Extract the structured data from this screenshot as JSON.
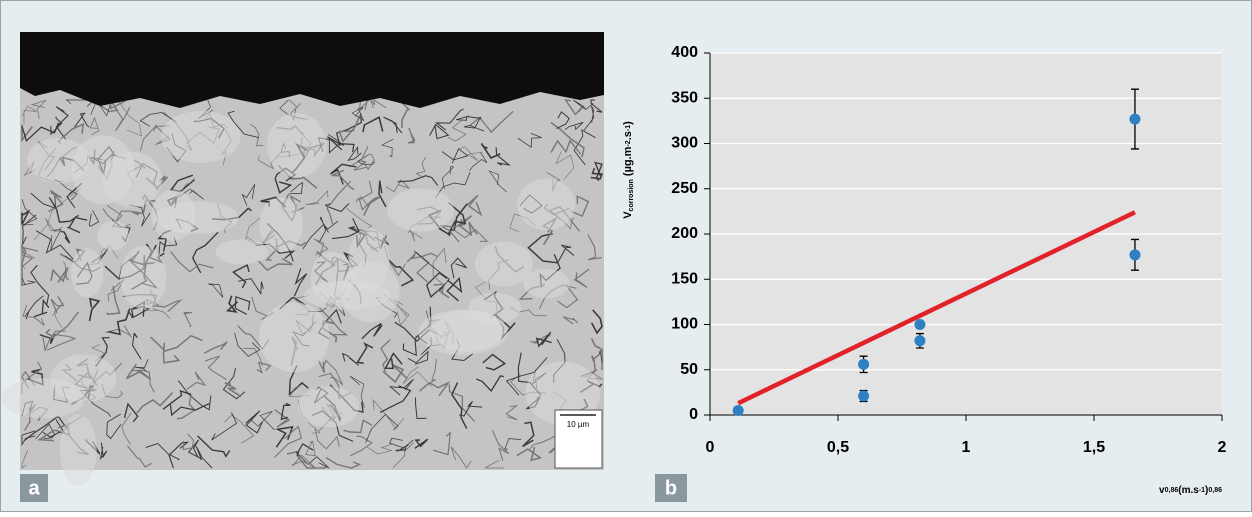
{
  "panels": [
    {
      "label": "a",
      "scale_bar": "10 µm"
    },
    {
      "label": "b"
    }
  ],
  "chart_data": {
    "type": "scatter",
    "xlim": [
      0,
      2
    ],
    "xticks": [
      0,
      {
        "value": 0.5,
        "label": "0,5"
      },
      1,
      {
        "value": 1.5,
        "label": "1,5"
      },
      2
    ],
    "ylim": [
      0,
      400
    ],
    "yticks": [
      0,
      50,
      100,
      150,
      200,
      250,
      300,
      350,
      400
    ],
    "grid": true,
    "xlabel": [
      {
        "text": "v"
      },
      {
        "text": "0,86",
        "shift": "sup"
      },
      {
        "text": "(m.s"
      },
      {
        "text": "-1",
        "shift": "sup"
      },
      {
        "text": ")"
      },
      {
        "text": "0,86",
        "shift": "sup"
      }
    ],
    "ylabel": [
      {
        "text": "V"
      },
      {
        "text": "corrosion",
        "shift": "sub"
      },
      {
        "text": " (µg.m"
      },
      {
        "text": "-2",
        "shift": "sup"
      },
      {
        "text": ".s"
      },
      {
        "text": "-1",
        "shift": "sup"
      },
      {
        "text": ")"
      }
    ],
    "series": [
      {
        "type": "scatter",
        "color": "#2f7fc3",
        "x": [
          0.11,
          0.6,
          0.6,
          0.82,
          0.82,
          1.66,
          1.66
        ],
        "values": [
          5,
          56,
          21,
          100,
          82,
          327,
          177
        ],
        "errors": [
          3,
          9,
          6,
          3,
          8,
          33,
          17
        ]
      },
      {
        "type": "line",
        "color": "#e2222a",
        "x": [
          0.11,
          1.66
        ],
        "values": [
          13,
          224
        ]
      }
    ]
  }
}
